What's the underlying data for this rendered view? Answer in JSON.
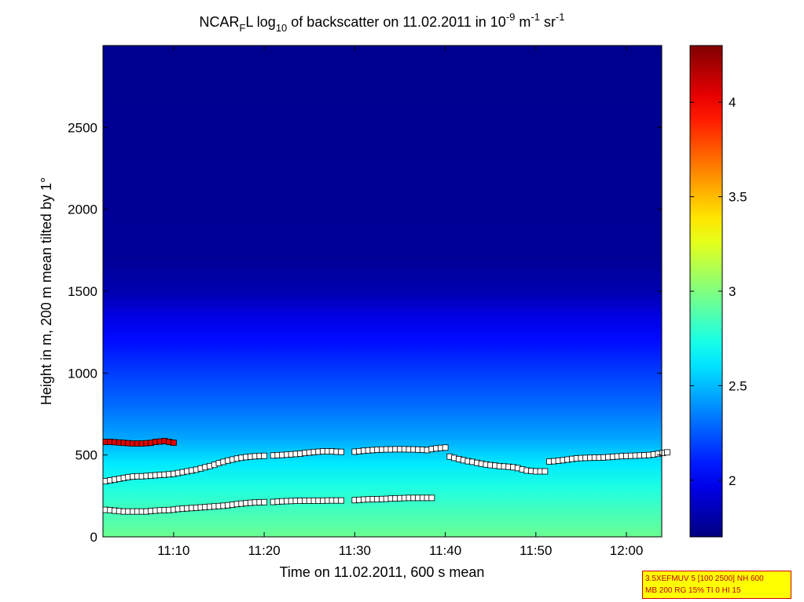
{
  "chart_data": {
    "type": "heatmap",
    "title": {
      "prefix": "NCAR",
      "sub1": "F",
      "after_sub1": "L log",
      "sub2": "10",
      "middle": " of backscatter on 11.02.2011 in 10",
      "sup1": "-9",
      "unit_m": " m",
      "sup2": "-1",
      "unit_sr": " sr",
      "sup3": "-1"
    },
    "xlabel": "Time on 11.02.2011, 600 s mean",
    "ylabel": "Height in m, 200 m mean tilted by 1°",
    "x_ticks": [
      "11:10",
      "11:20",
      "11:30",
      "11:40",
      "11:50",
      "12:00"
    ],
    "x_tick_minutes": [
      10,
      20,
      30,
      40,
      50,
      60
    ],
    "xlim_minutes": [
      2.2,
      63.9
    ],
    "x_origin": "11:00",
    "y_ticks": [
      "0",
      "500",
      "1000",
      "1500",
      "2000",
      "2500"
    ],
    "y_tick_values": [
      0,
      500,
      1000,
      1500,
      2000,
      2500
    ],
    "ylim": [
      0,
      3000
    ],
    "colorbar": {
      "ticks": [
        "2",
        "2.5",
        "3",
        "3.5",
        "4"
      ],
      "tick_values": [
        2,
        2.5,
        3,
        3.5,
        4
      ],
      "range": [
        1.7,
        4.3
      ]
    },
    "background_profile": [
      {
        "height": 0,
        "value": 2.95
      },
      {
        "height": 150,
        "value": 2.85
      },
      {
        "height": 300,
        "value": 2.75
      },
      {
        "height": 450,
        "value": 2.62
      },
      {
        "height": 600,
        "value": 2.45
      },
      {
        "height": 800,
        "value": 2.3
      },
      {
        "height": 1000,
        "value": 2.18
      },
      {
        "height": 1200,
        "value": 2.05
      },
      {
        "height": 1350,
        "value": 1.95
      },
      {
        "height": 1500,
        "value": 1.82
      },
      {
        "height": 1700,
        "value": 1.76
      },
      {
        "height": 3000,
        "value": 1.74
      }
    ],
    "series": [
      {
        "color": "#e00000",
        "points": [
          [
            2.5,
            580
          ],
          [
            3,
            580
          ],
          [
            3.5,
            578
          ],
          [
            4,
            576
          ],
          [
            4.5,
            574
          ],
          [
            5,
            572
          ],
          [
            5.5,
            570
          ],
          [
            6,
            570
          ],
          [
            6.5,
            570
          ],
          [
            7,
            572
          ],
          [
            7.5,
            574
          ],
          [
            8,
            580
          ],
          [
            8.5,
            582
          ],
          [
            9,
            585
          ],
          [
            9.5,
            580
          ],
          [
            10,
            575
          ]
        ]
      },
      {
        "color": "#ffffff",
        "points": [
          [
            2.5,
            340
          ],
          [
            3,
            345
          ],
          [
            3.5,
            350
          ],
          [
            4,
            355
          ],
          [
            4.5,
            360
          ],
          [
            5,
            365
          ],
          [
            5.5,
            368
          ],
          [
            6,
            370
          ],
          [
            6.5,
            370
          ],
          [
            7,
            372
          ],
          [
            7.5,
            374
          ],
          [
            8,
            376
          ],
          [
            8.5,
            378
          ],
          [
            9,
            380
          ],
          [
            9.5,
            382
          ],
          [
            10,
            385
          ],
          [
            10.5,
            390
          ],
          [
            11,
            395
          ],
          [
            11.5,
            400
          ],
          [
            12,
            405
          ],
          [
            12.5,
            410
          ],
          [
            13,
            418
          ],
          [
            13.5,
            425
          ],
          [
            14,
            432
          ],
          [
            14.5,
            440
          ],
          [
            15,
            450
          ],
          [
            15.5,
            458
          ],
          [
            16,
            466
          ],
          [
            16.5,
            472
          ],
          [
            17,
            478
          ],
          [
            17.5,
            483
          ],
          [
            18,
            487
          ],
          [
            18.5,
            490
          ],
          [
            19,
            492
          ],
          [
            19.5,
            494
          ],
          [
            20,
            495
          ],
          [
            21,
            497
          ],
          [
            21.5,
            499
          ],
          [
            22,
            500
          ],
          [
            22.5,
            502
          ],
          [
            23,
            504
          ],
          [
            23.5,
            506
          ],
          [
            24,
            508
          ],
          [
            24.5,
            512
          ],
          [
            25,
            515
          ],
          [
            25.5,
            518
          ],
          [
            26,
            520
          ],
          [
            26.5,
            522
          ],
          [
            27,
            522
          ],
          [
            27.5,
            522
          ],
          [
            28,
            520
          ],
          [
            28.5,
            519
          ],
          [
            30,
            520
          ],
          [
            30.5,
            523
          ],
          [
            31,
            526
          ],
          [
            31.5,
            528
          ],
          [
            32,
            530
          ],
          [
            32.5,
            532
          ],
          [
            33,
            533
          ],
          [
            33.5,
            534
          ],
          [
            34,
            534
          ],
          [
            34.5,
            535
          ],
          [
            35,
            535
          ],
          [
            35.5,
            535
          ],
          [
            36,
            534
          ],
          [
            36.5,
            534
          ],
          [
            37,
            533
          ],
          [
            37.5,
            532
          ],
          [
            38,
            530
          ],
          [
            38.5,
            536
          ],
          [
            39,
            540
          ],
          [
            39.5,
            543
          ],
          [
            40,
            545
          ],
          [
            40.5,
            490
          ],
          [
            41,
            482
          ],
          [
            41.5,
            475
          ],
          [
            42,
            468
          ],
          [
            42.5,
            462
          ],
          [
            43,
            458
          ],
          [
            43.5,
            452
          ],
          [
            44,
            447
          ],
          [
            44.5,
            442
          ],
          [
            45,
            438
          ],
          [
            45.5,
            435
          ],
          [
            46,
            432
          ],
          [
            46.5,
            430
          ],
          [
            47,
            428
          ],
          [
            47.5,
            425
          ],
          [
            48,
            420
          ],
          [
            48.5,
            412
          ],
          [
            49,
            405
          ],
          [
            49.5,
            402
          ],
          [
            50,
            400
          ],
          [
            50.5,
            400
          ],
          [
            51,
            400
          ],
          [
            51.5,
            460
          ],
          [
            52,
            462
          ],
          [
            52.5,
            465
          ],
          [
            53,
            468
          ],
          [
            53.5,
            472
          ],
          [
            54,
            476
          ],
          [
            54.5,
            479
          ],
          [
            55,
            481
          ],
          [
            55.5,
            482
          ],
          [
            56,
            483
          ],
          [
            56.5,
            484
          ],
          [
            57,
            484
          ],
          [
            57.5,
            485
          ],
          [
            58,
            487
          ],
          [
            58.5,
            489
          ],
          [
            59,
            491
          ],
          [
            59.5,
            493
          ],
          [
            60,
            494
          ],
          [
            60.5,
            495
          ],
          [
            61,
            496
          ],
          [
            61.5,
            497
          ],
          [
            62,
            498
          ],
          [
            62.5,
            500
          ],
          [
            63,
            503
          ],
          [
            63.5,
            507
          ],
          [
            64,
            512
          ],
          [
            64.5,
            516
          ]
        ]
      },
      {
        "color": "#ffffff",
        "points": [
          [
            2.5,
            165
          ],
          [
            3,
            163
          ],
          [
            3.5,
            160
          ],
          [
            4,
            157
          ],
          [
            4.5,
            155
          ],
          [
            5,
            155
          ],
          [
            5.5,
            155
          ],
          [
            6,
            155
          ],
          [
            6.5,
            155
          ],
          [
            7,
            155
          ],
          [
            7.5,
            158
          ],
          [
            8,
            160
          ],
          [
            8.5,
            162
          ],
          [
            9,
            163
          ],
          [
            9.5,
            164
          ],
          [
            10,
            166
          ],
          [
            10.5,
            170
          ],
          [
            11,
            172
          ],
          [
            11.5,
            174
          ],
          [
            12,
            176
          ],
          [
            12.5,
            178
          ],
          [
            13,
            180
          ],
          [
            13.5,
            182
          ],
          [
            14,
            184
          ],
          [
            14.5,
            186
          ],
          [
            15,
            188
          ],
          [
            15.5,
            190
          ],
          [
            16,
            193
          ],
          [
            16.5,
            196
          ],
          [
            17,
            200
          ],
          [
            17.5,
            203
          ],
          [
            18,
            206
          ],
          [
            18.5,
            208
          ],
          [
            19,
            210
          ],
          [
            19.5,
            211
          ],
          [
            20,
            212
          ],
          [
            21,
            213
          ],
          [
            21.5,
            215
          ],
          [
            22,
            217
          ],
          [
            22.5,
            218
          ],
          [
            23,
            219
          ],
          [
            23.5,
            220
          ],
          [
            24,
            220
          ],
          [
            24.5,
            221
          ],
          [
            25,
            221
          ],
          [
            25.5,
            221
          ],
          [
            26,
            221
          ],
          [
            26.5,
            221
          ],
          [
            27,
            222
          ],
          [
            27.5,
            222
          ],
          [
            28,
            222
          ],
          [
            28.5,
            222
          ],
          [
            30,
            224
          ],
          [
            30.5,
            226
          ],
          [
            31,
            228
          ],
          [
            31.5,
            229
          ],
          [
            32,
            230
          ],
          [
            32.5,
            230
          ],
          [
            33,
            231
          ],
          [
            33.5,
            232
          ],
          [
            34,
            234
          ],
          [
            34.5,
            235
          ],
          [
            35,
            236
          ],
          [
            35.5,
            237
          ],
          [
            36,
            238
          ],
          [
            36.5,
            238
          ],
          [
            37,
            238
          ],
          [
            37.5,
            238
          ],
          [
            38,
            238
          ],
          [
            38.5,
            238
          ]
        ]
      }
    ],
    "info_box": {
      "line1": "3.5XEFMUV 5 [100 2500] NH 600",
      "line2": "MB 200 RG 15% TI 0 HI 15",
      "background": "#ffff00",
      "text_color": "#c00000"
    }
  }
}
